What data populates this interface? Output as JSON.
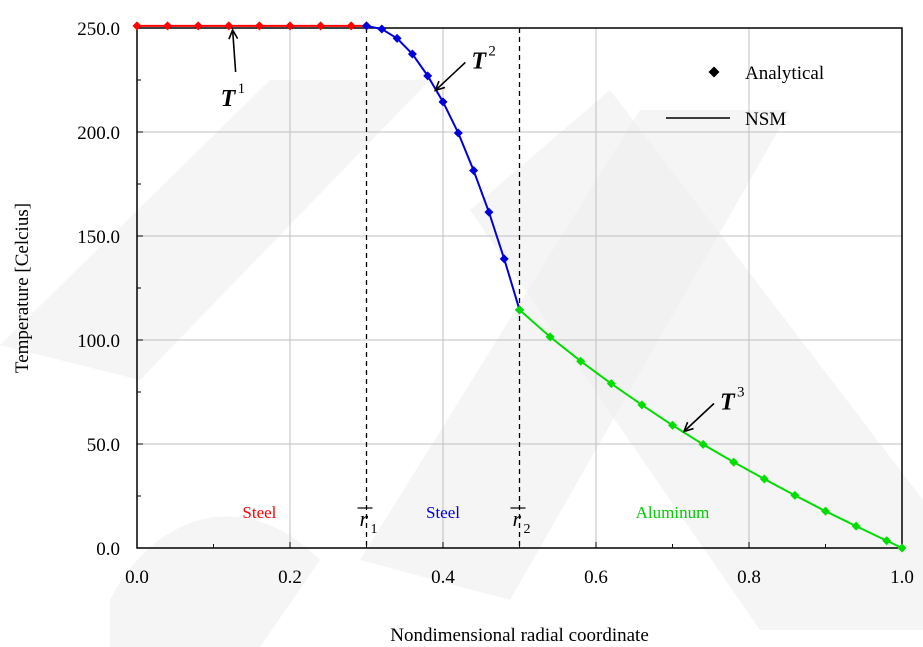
{
  "chart_data": {
    "type": "line",
    "xlabel": "Nondimensional radial coordinate",
    "ylabel": "Temperature [Celcius]",
    "xlim": [
      0.0,
      1.0
    ],
    "ylim": [
      0.0,
      250.0
    ],
    "x_ticks": [
      0.0,
      0.2,
      0.4,
      0.6,
      0.8,
      1.0
    ],
    "x_tick_labels": [
      "0.0",
      "0.2",
      "0.4",
      "0.6",
      "0.8",
      "1.0"
    ],
    "y_ticks": [
      0,
      50,
      100,
      150,
      200,
      250
    ],
    "y_tick_labels": [
      "0.0",
      "50.0",
      "100.0",
      "150.0",
      "200.0",
      "250.0"
    ],
    "grid": true,
    "legend": {
      "placement": "top-right",
      "entries": [
        {
          "label": "Analytical",
          "marker": "diamond"
        },
        {
          "label": "NSM",
          "marker": "line"
        }
      ]
    },
    "series": [
      {
        "color": "#ff0000",
        "x": [
          0.0,
          0.04,
          0.08,
          0.12,
          0.16,
          0.2,
          0.24,
          0.28,
          0.3
        ],
        "y": [
          251.0,
          251.0,
          251.0,
          251.0,
          251.0,
          251.0,
          251.0,
          251.0,
          251.0
        ]
      },
      {
        "color": "#0000dd",
        "x": [
          0.3,
          0.32,
          0.34,
          0.36,
          0.38,
          0.4,
          0.42,
          0.44,
          0.46,
          0.48,
          0.5
        ],
        "y": [
          251.0,
          249.5,
          245.0,
          237.5,
          227.0,
          214.5,
          199.5,
          181.5,
          161.5,
          139.0,
          114.5
        ]
      },
      {
        "color": "#00dd00",
        "x": [
          0.5,
          0.54,
          0.58,
          0.62,
          0.66,
          0.7,
          0.74,
          0.78,
          0.82,
          0.86,
          0.9,
          0.94,
          0.98,
          1.0
        ],
        "y": [
          114.5,
          101.5,
          89.8,
          79.0,
          68.8,
          59.0,
          49.8,
          41.3,
          33.2,
          25.3,
          17.7,
          10.5,
          3.5,
          0.0
        ]
      }
    ],
    "interfaces": [
      {
        "x": 0.3,
        "label": "r",
        "subscript": "1"
      },
      {
        "x": 0.5,
        "label": "r",
        "subscript": "2"
      }
    ],
    "region_labels": [
      {
        "text": "Steel",
        "x": 0.16,
        "color": "#ff0000"
      },
      {
        "text": "Steel",
        "x": 0.4,
        "color": "#0000dd"
      },
      {
        "text": "Aluminum",
        "x": 0.7,
        "color": "#00cc00"
      }
    ],
    "annotations": [
      {
        "base": "T",
        "sup": "1",
        "point": [
          0.125,
          251.0
        ]
      },
      {
        "base": "T",
        "sup": "2",
        "point": [
          0.39,
          220.0
        ]
      },
      {
        "base": "T",
        "sup": "3",
        "point": [
          0.715,
          56.0
        ]
      }
    ]
  }
}
